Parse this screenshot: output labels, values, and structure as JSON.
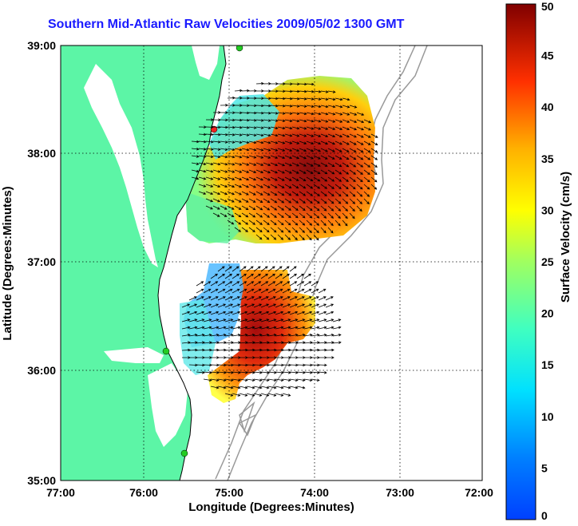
{
  "title": "Southern Mid-Atlantic Raw Velocities 2009/05/02 1300 GMT",
  "x_axis": {
    "label": "Longitude (Degrees:Minutes)",
    "ticks": [
      "77:00",
      "76:00",
      "75:00",
      "74:00",
      "73:00",
      "72:00"
    ]
  },
  "y_axis": {
    "label": "Latitude (Degrees:Minutes)",
    "ticks": [
      "39:00",
      "38:00",
      "37:00",
      "36:00",
      "35:00"
    ]
  },
  "colorbar": {
    "label": "Surface Velocity (cm/s)",
    "ticks": [
      "50",
      "45",
      "40",
      "35",
      "30",
      "25",
      "20",
      "15",
      "10",
      "5",
      "0"
    ],
    "range": [
      0,
      50
    ],
    "colormap": "jet"
  },
  "colors": {
    "land": "#5cf5a6",
    "title": "#1a1aff",
    "bathymetry": "#999999",
    "grid": "#000000"
  },
  "stations": [
    {
      "color": "#22cc22"
    },
    {
      "color": "#ee2222"
    },
    {
      "color": "#22cc22"
    },
    {
      "color": "#22cc22"
    }
  ]
}
